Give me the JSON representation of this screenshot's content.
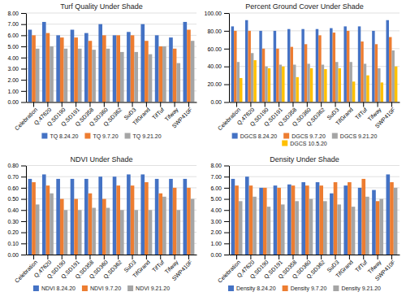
{
  "chart_data": [
    {
      "type": "bar",
      "title": "Turf Quality Under Shade",
      "categories": [
        "Celebration",
        "Q.47620",
        "Q.SD190",
        "Q.SD191",
        "Q.SD358",
        "Q.SD360",
        "Q.SD362",
        "SuD3",
        "TifGrand",
        "TifTuf",
        "Tifway",
        "SWP410F"
      ],
      "series": [
        {
          "name": "TQ 8.24.20",
          "color": "#4472C4",
          "values": [
            6.5,
            7.2,
            6.0,
            6.5,
            6.2,
            7.0,
            6.0,
            6.3,
            7.0,
            6.0,
            5.8,
            7.2
          ]
        },
        {
          "name": "TQ 9.7.20",
          "color": "#ED7D31",
          "values": [
            6.0,
            6.2,
            5.8,
            5.8,
            5.5,
            6.0,
            6.0,
            6.0,
            5.5,
            5.0,
            4.8,
            6.5
          ]
        },
        {
          "name": "TQ 9.21.20",
          "color": "#A5A5A5",
          "values": [
            4.8,
            5.0,
            4.8,
            4.8,
            4.7,
            4.8,
            4.5,
            4.5,
            4.3,
            5.0,
            3.5,
            5.5
          ]
        }
      ],
      "ylim": [
        0,
        8
      ],
      "yticks": [
        {
          "value": 0,
          "label": "0.00"
        },
        {
          "value": 1,
          "label": "1.00"
        },
        {
          "value": 2,
          "label": "2.00"
        },
        {
          "value": 3,
          "label": "3.00"
        },
        {
          "value": 4,
          "label": "4.00"
        },
        {
          "value": 5,
          "label": "5.00"
        },
        {
          "value": 6,
          "label": "6.00"
        },
        {
          "value": 7,
          "label": "7.00"
        },
        {
          "value": 8,
          "label": "8.00"
        }
      ],
      "grid": true,
      "legend": "bottom"
    },
    {
      "type": "bar",
      "title": "Percent Ground Cover Under Shade",
      "categories": [
        "Celebration",
        "Q.47620",
        "Q.SD190",
        "Q.SD191",
        "Q.SD358",
        "Q.SD360",
        "Q.SD362",
        "SuD3",
        "TifGrand",
        "TifTuf",
        "Tifway",
        "SWP410F"
      ],
      "series": [
        {
          "name": "DGCS 8.24.20",
          "color": "#4472C4",
          "values": [
            85,
            92,
            80,
            80,
            82,
            82,
            82,
            83,
            85,
            85,
            80,
            92
          ]
        },
        {
          "name": "DGCS 9.7.20",
          "color": "#ED7D31",
          "values": [
            80,
            80,
            60,
            60,
            62,
            65,
            75,
            78,
            80,
            68,
            65,
            73
          ]
        },
        {
          "name": "DGCS 9.21.20",
          "color": "#A5A5A5",
          "values": [
            45,
            55,
            40,
            42,
            42,
            43,
            42,
            45,
            45,
            43,
            38,
            58
          ]
        },
        {
          "name": "DGCS 10.5.20",
          "color": "#FFC000",
          "values": [
            27,
            47,
            38,
            40,
            28,
            38,
            37,
            38,
            23,
            30,
            22,
            40
          ]
        }
      ],
      "ylim": [
        0,
        100
      ],
      "yticks": [
        {
          "value": 0,
          "label": "0.00"
        },
        {
          "value": 20,
          "label": "20.00"
        },
        {
          "value": 40,
          "label": "40.00"
        },
        {
          "value": 60,
          "label": "60.00"
        },
        {
          "value": 80,
          "label": "80.00"
        },
        {
          "value": 100,
          "label": "100.00"
        }
      ],
      "grid": true,
      "legend": "bottom"
    },
    {
      "type": "bar",
      "title": "NDVI Under Shade",
      "categories": [
        "Celebration",
        "Q.47620",
        "Q.SD190",
        "Q.SD191",
        "Q.SD358",
        "Q.SD360",
        "Q.SD362",
        "SuD3",
        "TifGrand",
        "TifTuf",
        "Tifway",
        "SWP410F"
      ],
      "series": [
        {
          "name": "NDVI 8.24.20",
          "color": "#4472C4",
          "values": [
            0.68,
            0.72,
            0.68,
            0.68,
            0.68,
            0.7,
            0.7,
            0.72,
            0.72,
            0.68,
            0.68,
            0.68
          ]
        },
        {
          "name": "NDVI 9.7.20",
          "color": "#ED7D31",
          "values": [
            0.65,
            0.62,
            0.5,
            0.5,
            0.55,
            0.5,
            0.62,
            0.62,
            0.65,
            0.55,
            0.6,
            0.6
          ]
        },
        {
          "name": "NDVI 9.21.20",
          "color": "#A5A5A5",
          "values": [
            0.45,
            0.55,
            0.4,
            0.4,
            0.42,
            0.42,
            0.4,
            0.4,
            0.4,
            0.52,
            0.4,
            0.5
          ]
        }
      ],
      "ylim": [
        0,
        0.8
      ],
      "yticks": [
        {
          "value": 0,
          "label": "0.00"
        },
        {
          "value": 0.1,
          "label": "0.10"
        },
        {
          "value": 0.2,
          "label": "0.20"
        },
        {
          "value": 0.3,
          "label": "0.30"
        },
        {
          "value": 0.4,
          "label": "0.40"
        },
        {
          "value": 0.5,
          "label": "0.50"
        },
        {
          "value": 0.6,
          "label": "0.60"
        },
        {
          "value": 0.7,
          "label": "0.70"
        },
        {
          "value": 0.8,
          "label": "0.80"
        }
      ],
      "grid": true,
      "legend": "bottom"
    },
    {
      "type": "bar",
      "title": "Density Under Shade",
      "categories": [
        "Celebration",
        "Q.47620",
        "Q.SD190",
        "Q.SD191",
        "Q.SD358",
        "Q.SD360",
        "Q.SD362",
        "SuD3",
        "TifGrand",
        "TifTuf",
        "Tifway",
        "SWP410F"
      ],
      "series": [
        {
          "name": "Density 8.24.20",
          "color": "#4472C4",
          "values": [
            6.8,
            7.0,
            6.0,
            6.2,
            6.3,
            6.5,
            6.5,
            5.5,
            6.2,
            6.0,
            5.8,
            7.2
          ]
        },
        {
          "name": "Density 9.7.20",
          "color": "#ED7D31",
          "values": [
            6.2,
            6.2,
            6.0,
            6.0,
            6.2,
            6.2,
            6.2,
            6.5,
            6.5,
            6.8,
            4.8,
            6.5
          ]
        },
        {
          "name": "Density 9.21.20",
          "color": "#A5A5A5",
          "values": [
            4.8,
            5.2,
            4.3,
            4.5,
            4.8,
            5.0,
            4.8,
            4.5,
            4.3,
            5.2,
            5.0,
            6.0
          ]
        }
      ],
      "ylim": [
        0,
        8
      ],
      "yticks": [
        {
          "value": 0,
          "label": "0.00"
        },
        {
          "value": 1,
          "label": "1.00"
        },
        {
          "value": 2,
          "label": "2.00"
        },
        {
          "value": 3,
          "label": "3.00"
        },
        {
          "value": 4,
          "label": "4.00"
        },
        {
          "value": 5,
          "label": "5.00"
        },
        {
          "value": 6,
          "label": "6.00"
        },
        {
          "value": 7,
          "label": "7.00"
        },
        {
          "value": 8,
          "label": "8.00"
        }
      ],
      "grid": true,
      "legend": "bottom"
    }
  ]
}
